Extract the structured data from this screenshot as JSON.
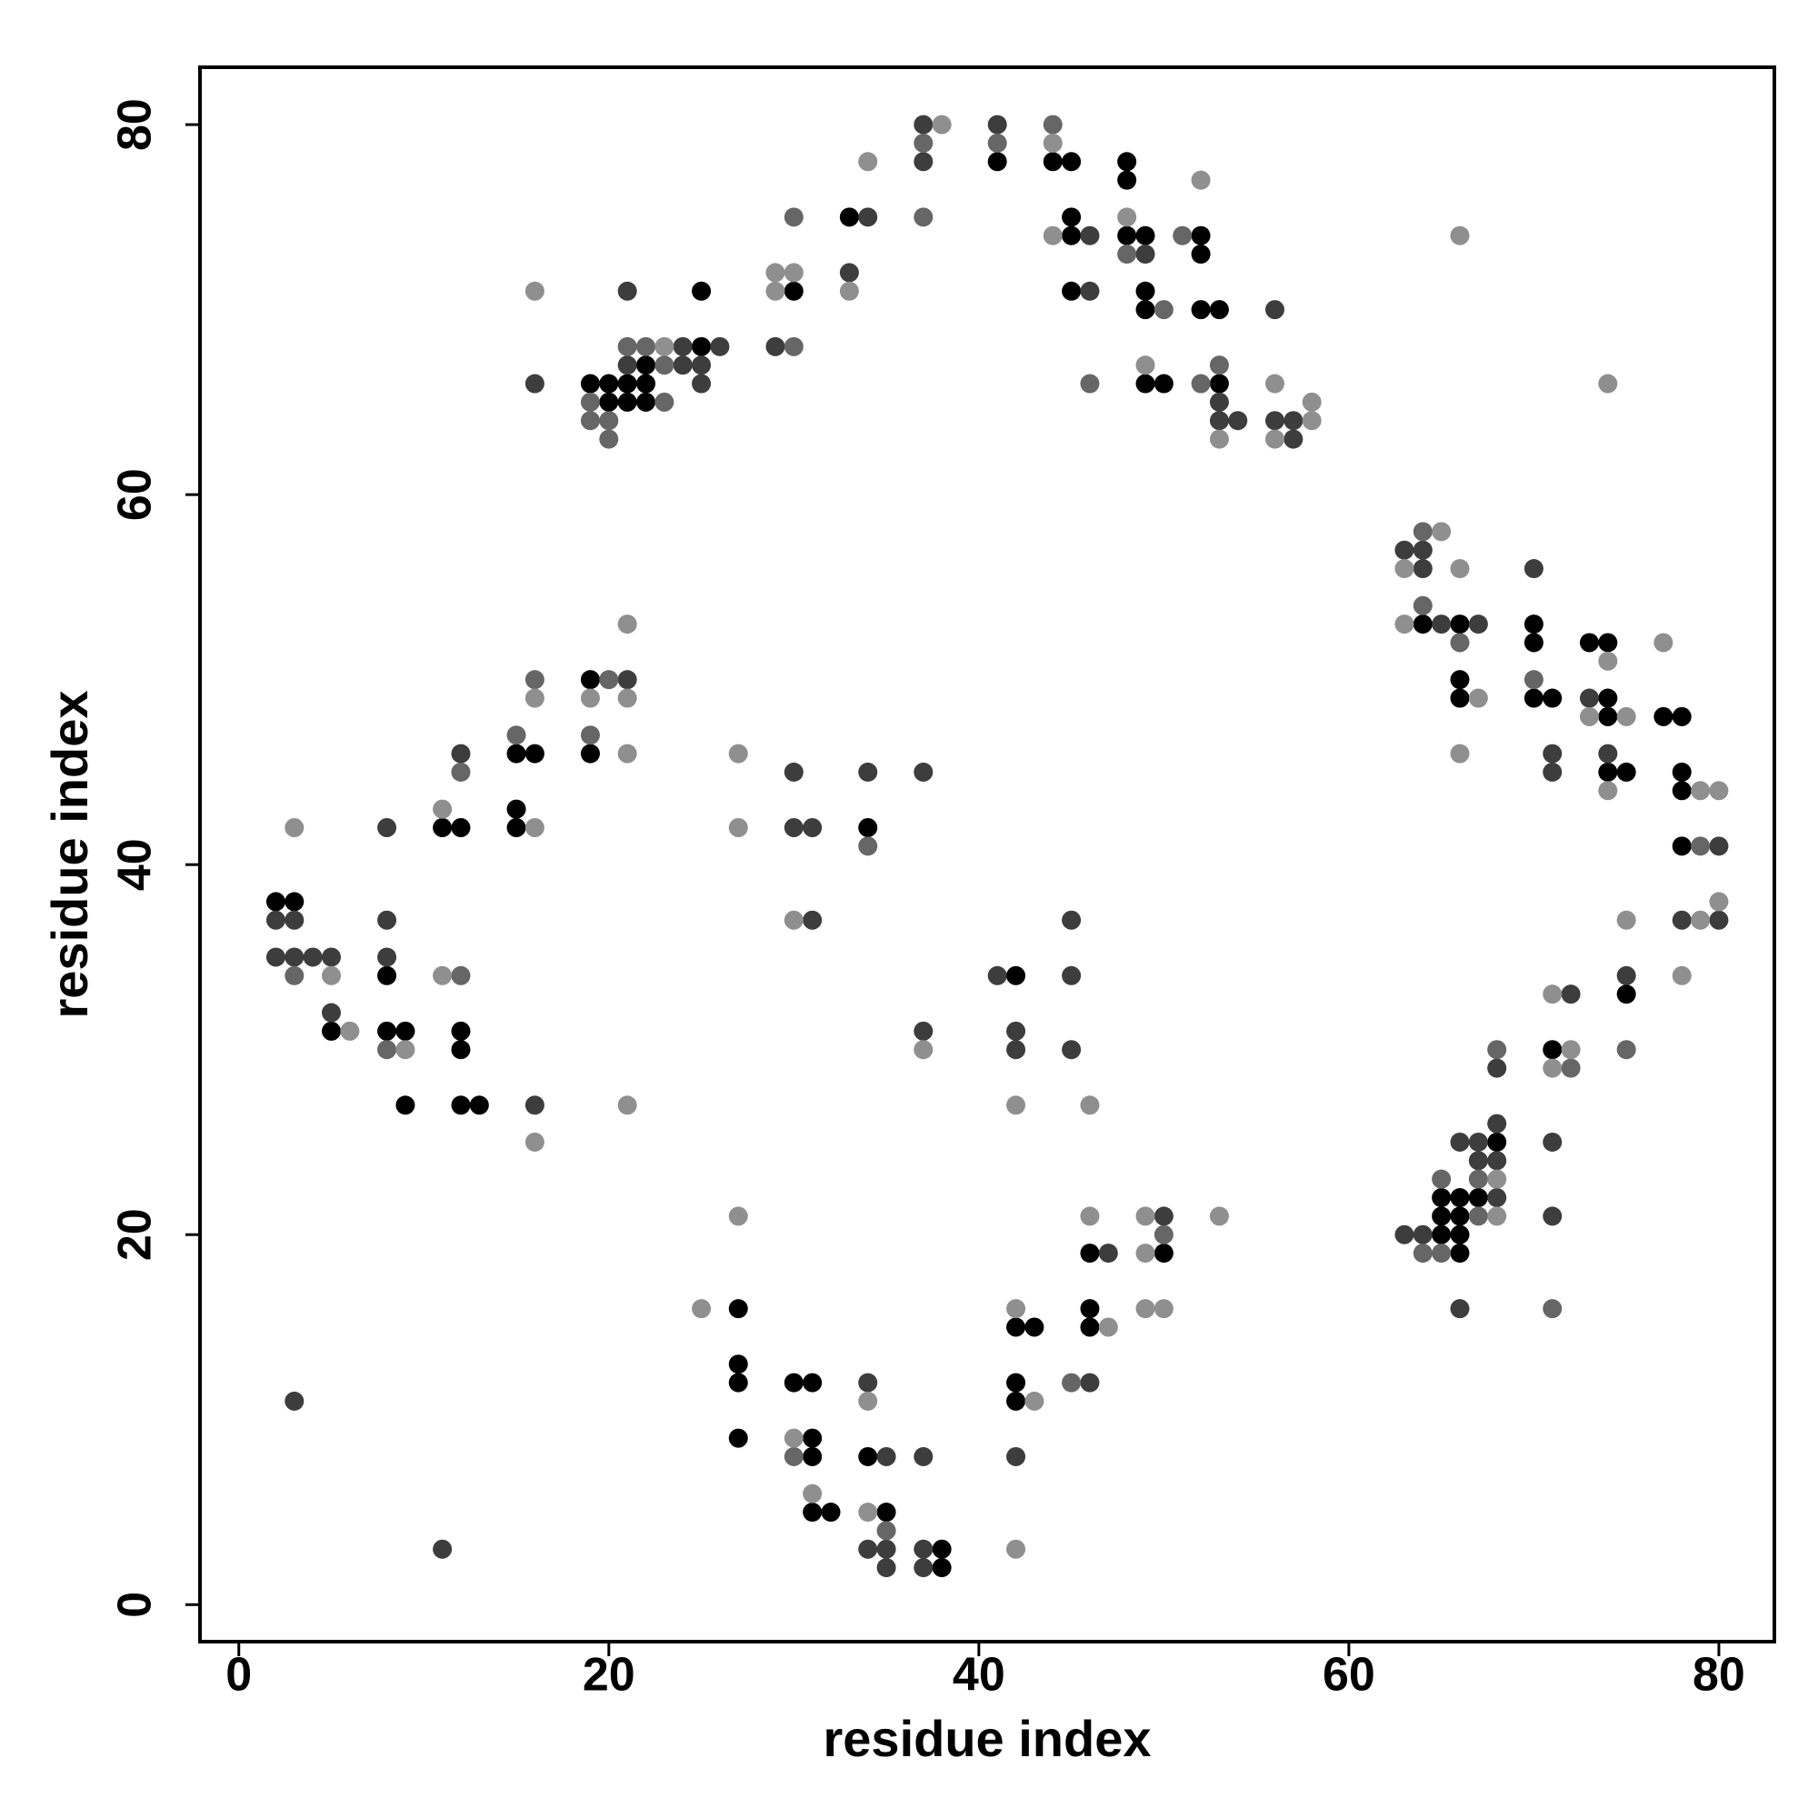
{
  "chart_data": {
    "type": "scatter",
    "x_label": "residue index",
    "y_label": "residue index",
    "xlim": [
      -2.1,
      83.0
    ],
    "ylim": [
      -2.0,
      83.1
    ],
    "xticks": [
      0,
      20,
      40,
      60,
      80
    ],
    "yticks": [
      0,
      20,
      40,
      60,
      80
    ],
    "grid": false,
    "series": [
      {
        "color": "#000000",
        "x": [
          2,
          3,
          5,
          8,
          8,
          9,
          9,
          11,
          12,
          12,
          12,
          12,
          13,
          15,
          16,
          15,
          15,
          19,
          19,
          19,
          20,
          21,
          22,
          20,
          21,
          22,
          25,
          22,
          25,
          30,
          33,
          41,
          44,
          45,
          45,
          45,
          45,
          48,
          48,
          48,
          49,
          49,
          49,
          49,
          50,
          52,
          52,
          52,
          53,
          53,
          34,
          42,
          27,
          27,
          27,
          27,
          30,
          31,
          31,
          31,
          31,
          32,
          34,
          35,
          38,
          38,
          42,
          43,
          42,
          42,
          46,
          46,
          46,
          50,
          64,
          66,
          66,
          66,
          70,
          70,
          70,
          71,
          73,
          74,
          74,
          74,
          74,
          75,
          77,
          78,
          78,
          78,
          78,
          75,
          65,
          66,
          66,
          65,
          66,
          65,
          66,
          67,
          68,
          71
        ],
        "y": [
          38,
          38,
          31,
          34,
          31,
          31,
          27,
          42,
          42,
          31,
          30,
          27,
          27,
          46,
          46,
          43,
          42,
          50,
          46,
          66,
          66,
          66,
          66,
          65,
          65,
          65,
          68,
          67,
          71,
          71,
          75,
          78,
          78,
          78,
          75,
          74,
          71,
          78,
          77,
          74,
          74,
          71,
          70,
          66,
          66,
          74,
          73,
          70,
          70,
          66,
          42,
          34,
          16,
          13,
          12,
          9,
          12,
          12,
          9,
          8,
          5,
          5,
          8,
          5,
          3,
          2,
          15,
          15,
          12,
          11,
          16,
          15,
          19,
          19,
          53,
          53,
          50,
          49,
          53,
          52,
          49,
          49,
          52,
          52,
          49,
          48,
          45,
          45,
          48,
          48,
          45,
          44,
          41,
          33,
          20,
          20,
          19,
          21,
          21,
          22,
          22,
          22,
          25,
          30
        ]
      },
      {
        "color": "#3d3d3d",
        "x": [
          3,
          11,
          2,
          3,
          2,
          3,
          4,
          5,
          5,
          8,
          8,
          8,
          12,
          16,
          21,
          16,
          21,
          24,
          26,
          21,
          24,
          25,
          25,
          29,
          34,
          33,
          37,
          37,
          41,
          46,
          46,
          49,
          53,
          53,
          54,
          56,
          56,
          57,
          57,
          30,
          30,
          31,
          31,
          34,
          37,
          37,
          41,
          42,
          42,
          45,
          45,
          45,
          34,
          35,
          34,
          35,
          35,
          37,
          37,
          37,
          42,
          46,
          47,
          50,
          63,
          64,
          64,
          65,
          67,
          70,
          71,
          71,
          73,
          74,
          80,
          78,
          80,
          75,
          63,
          64,
          68,
          66,
          67,
          67,
          68,
          68,
          66,
          68,
          72,
          71,
          71
        ],
        "y": [
          11,
          3,
          37,
          37,
          35,
          35,
          35,
          35,
          32,
          42,
          37,
          35,
          46,
          27,
          50,
          66,
          71,
          68,
          68,
          67,
          67,
          67,
          66,
          68,
          75,
          72,
          80,
          78,
          80,
          74,
          71,
          73,
          65,
          64,
          64,
          70,
          64,
          64,
          63,
          45,
          42,
          42,
          37,
          45,
          45,
          31,
          34,
          31,
          30,
          37,
          34,
          30,
          12,
          8,
          3,
          3,
          2,
          8,
          3,
          2,
          8,
          12,
          19,
          21,
          57,
          57,
          56,
          53,
          53,
          56,
          46,
          45,
          49,
          46,
          41,
          37,
          37,
          34,
          20,
          20,
          22,
          25,
          25,
          24,
          24,
          26,
          16,
          29,
          33,
          25,
          21
        ]
      },
      {
        "color": "#666666",
        "x": [
          3,
          12,
          8,
          12,
          15,
          16,
          20,
          19,
          19,
          23,
          19,
          20,
          20,
          21,
          22,
          23,
          30,
          30,
          37,
          37,
          41,
          44,
          46,
          48,
          50,
          51,
          52,
          53,
          34,
          30,
          35,
          45,
          50,
          64,
          64,
          66,
          70,
          79,
          75,
          64,
          65,
          67,
          65,
          67,
          68,
          72,
          71
        ],
        "y": [
          34,
          45,
          30,
          34,
          47,
          50,
          50,
          47,
          65,
          65,
          64,
          64,
          63,
          68,
          68,
          67,
          75,
          68,
          79,
          75,
          79,
          80,
          66,
          73,
          70,
          74,
          66,
          67,
          41,
          8,
          4,
          12,
          20,
          58,
          54,
          52,
          50,
          41,
          30,
          19,
          19,
          21,
          23,
          23,
          30,
          29,
          16
        ]
      },
      {
        "color": "#8f8f8f",
        "x": [
          5,
          6,
          9,
          11,
          11,
          16,
          16,
          16,
          3,
          19,
          21,
          21,
          21,
          21,
          16,
          23,
          29,
          30,
          29,
          33,
          34,
          38,
          44,
          44,
          48,
          49,
          52,
          53,
          56,
          58,
          58,
          56,
          27,
          27,
          30,
          37,
          42,
          46,
          25,
          27,
          30,
          31,
          34,
          34,
          42,
          43,
          42,
          47,
          46,
          49,
          49,
          49,
          50,
          53,
          63,
          65,
          63,
          66,
          67,
          66,
          66,
          74,
          73,
          75,
          74,
          74,
          77,
          79,
          80,
          80,
          79,
          78,
          75,
          68,
          68,
          71,
          72,
          71
        ],
        "y": [
          34,
          31,
          30,
          43,
          34,
          42,
          49,
          25,
          42,
          49,
          49,
          46,
          53,
          27,
          71,
          68,
          72,
          72,
          71,
          71,
          78,
          80,
          79,
          74,
          75,
          67,
          77,
          63,
          66,
          64,
          65,
          63,
          46,
          42,
          37,
          30,
          27,
          27,
          16,
          21,
          9,
          6,
          11,
          5,
          16,
          11,
          3,
          15,
          21,
          21,
          19,
          16,
          16,
          21,
          56,
          58,
          53,
          56,
          49,
          46,
          74,
          51,
          48,
          48,
          44,
          66,
          52,
          44,
          44,
          38,
          37,
          34,
          37,
          23,
          21,
          33,
          30,
          29
        ]
      }
    ]
  }
}
